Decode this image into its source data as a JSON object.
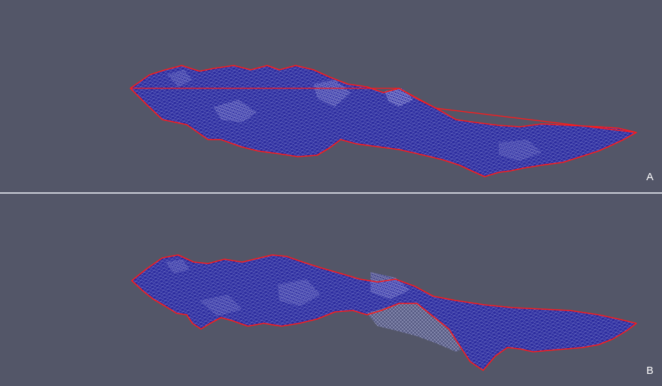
{
  "panels": [
    {
      "label": "A",
      "surface_color": "#2b2b9e",
      "wire_color": "#b9bde6",
      "boundary_color": "#ff1a1a",
      "fill_color": "#d90e0e"
    },
    {
      "label": "B",
      "surface_color": "#2b2b9e",
      "wire_color": "#b9bde6",
      "boundary_color": "#ff1a1a"
    }
  ]
}
